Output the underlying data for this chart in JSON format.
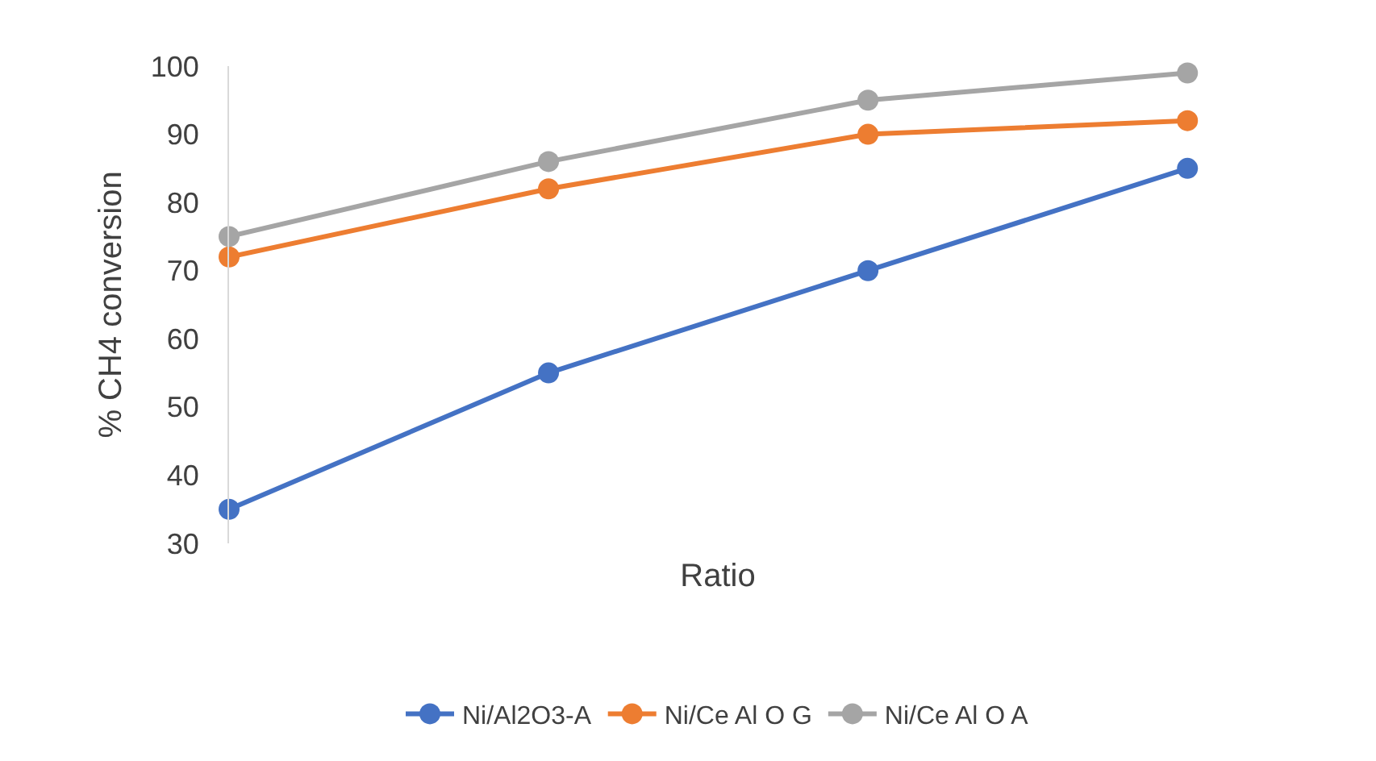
{
  "chart_data": {
    "type": "line",
    "xlabel": "Ratio",
    "ylabel": "% CH4 conversion",
    "categories": [
      null,
      null,
      null,
      null
    ],
    "series": [
      {
        "name": "Ni/Al2O3-A",
        "color": "#4472c4",
        "values": [
          35,
          55,
          70,
          85
        ]
      },
      {
        "name": "Ni/Ce Al O G",
        "color": "#ed7d31",
        "values": [
          72,
          82,
          90,
          92
        ]
      },
      {
        "name": "Ni/Ce Al O A",
        "color": "#a5a5a5",
        "values": [
          75,
          86,
          95,
          99
        ]
      }
    ],
    "ylim": [
      30,
      100
    ],
    "yticks": [
      30,
      40,
      50,
      60,
      70,
      80,
      90,
      100
    ],
    "legend": "bottom",
    "marker": "circle",
    "line_style": "solid",
    "tick_labels": "y"
  }
}
